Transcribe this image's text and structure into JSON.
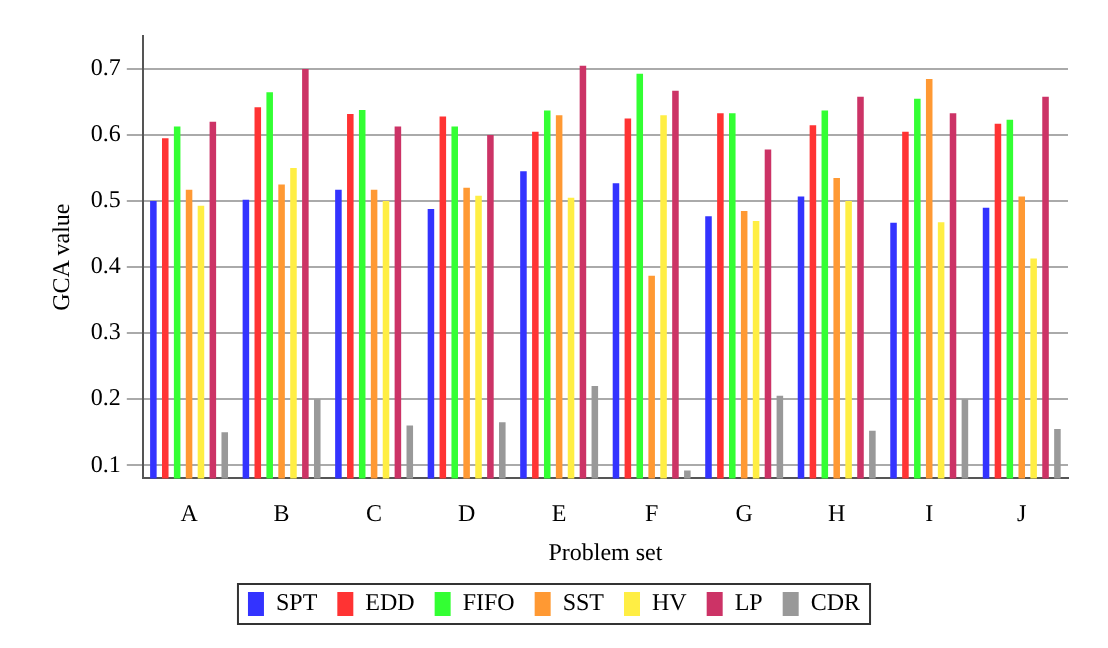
{
  "chart_data": {
    "type": "bar",
    "xlabel": "Problem set",
    "ylabel": "GCA value",
    "categories": [
      "A",
      "B",
      "C",
      "D",
      "E",
      "F",
      "G",
      "H",
      "I",
      "J"
    ],
    "series": [
      {
        "name": "SPT",
        "color": "#3333ff",
        "values": [
          0.5,
          0.502,
          0.517,
          0.488,
          0.545,
          0.527,
          0.477,
          0.507,
          0.467,
          0.49
        ]
      },
      {
        "name": "EDD",
        "color": "#ff3333",
        "values": [
          0.595,
          0.642,
          0.632,
          0.628,
          0.605,
          0.625,
          0.633,
          0.615,
          0.605,
          0.617
        ]
      },
      {
        "name": "FIFO",
        "color": "#33ff33",
        "values": [
          0.613,
          0.665,
          0.638,
          0.613,
          0.637,
          0.693,
          0.633,
          0.637,
          0.655,
          0.623
        ]
      },
      {
        "name": "SST",
        "color": "#ff9933",
        "values": [
          0.517,
          0.525,
          0.517,
          0.52,
          0.63,
          0.387,
          0.485,
          0.535,
          0.685,
          0.507
        ]
      },
      {
        "name": "HV",
        "color": "#ffee44",
        "values": [
          0.493,
          0.55,
          0.5,
          0.508,
          0.505,
          0.63,
          0.47,
          0.5,
          0.468,
          0.413
        ]
      },
      {
        "name": "LP",
        "color": "#cc3366",
        "values": [
          0.62,
          0.7,
          0.613,
          0.6,
          0.705,
          0.667,
          0.578,
          0.658,
          0.633,
          0.658
        ]
      },
      {
        "name": "CDR",
        "color": "#999999",
        "values": [
          0.15,
          0.2,
          0.16,
          0.165,
          0.22,
          0.092,
          0.205,
          0.152,
          0.2,
          0.155
        ]
      }
    ],
    "ylim": [
      0.08,
      0.75
    ],
    "yticks": [
      0.1,
      0.2,
      0.3,
      0.4,
      0.5,
      0.6,
      0.7
    ],
    "grid": "y",
    "legend": "bottom"
  }
}
